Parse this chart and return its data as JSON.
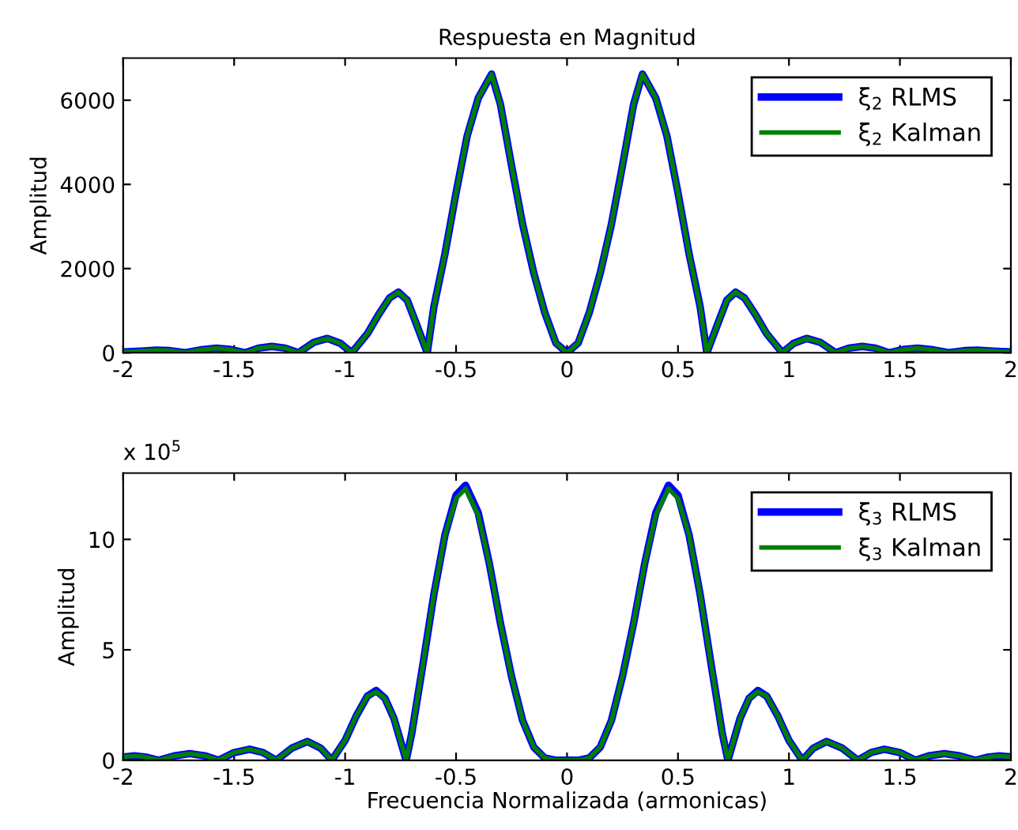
{
  "chart_data": [
    {
      "type": "line",
      "title": "Respuesta en Magnitud",
      "ylabel": "Amplitud",
      "xlim": [
        -2,
        2
      ],
      "xticks": [
        -2,
        -1.5,
        -1,
        -0.5,
        0,
        0.5,
        1,
        1.5,
        2
      ],
      "ylim": [
        0,
        7000
      ],
      "yticks": [
        0,
        2000,
        4000,
        6000
      ],
      "grid": false,
      "legend": "top right",
      "line_style": "solid",
      "x": [
        -2,
        -1.92,
        -1.85,
        -1.79,
        -1.72,
        -1.65,
        -1.58,
        -1.52,
        -1.45,
        -1.39,
        -1.33,
        -1.27,
        -1.21,
        -1.14,
        -1.08,
        -1.02,
        -0.97,
        -0.9,
        -0.85,
        -0.8,
        -0.76,
        -0.72,
        -0.68,
        -0.63,
        -0.6,
        -0.55,
        -0.5,
        -0.45,
        -0.4,
        -0.34,
        -0.3,
        -0.25,
        -0.2,
        -0.15,
        -0.1,
        -0.05,
        0,
        0.05,
        0.1,
        0.15,
        0.2,
        0.25,
        0.3,
        0.34,
        0.4,
        0.45,
        0.5,
        0.55,
        0.6,
        0.63,
        0.68,
        0.72,
        0.76,
        0.8,
        0.85,
        0.9,
        0.97,
        1.02,
        1.08,
        1.14,
        1.21,
        1.27,
        1.33,
        1.39,
        1.45,
        1.52,
        1.58,
        1.65,
        1.72,
        1.79,
        1.85,
        1.92,
        2
      ],
      "series": [
        {
          "name": "ξ$_{2}$ RLMS",
          "color": "#0000ff",
          "values": [
            20,
            40,
            60,
            50,
            0,
            70,
            110,
            80,
            0,
            110,
            150,
            110,
            0,
            250,
            340,
            220,
            0,
            450,
            900,
            1300,
            1440,
            1250,
            700,
            0,
            1090,
            2350,
            3800,
            5150,
            6050,
            6620,
            5900,
            4450,
            3050,
            1900,
            950,
            230,
            0,
            230,
            950,
            1900,
            3050,
            4450,
            5900,
            6620,
            6050,
            5150,
            3800,
            2350,
            1090,
            0,
            700,
            1250,
            1440,
            1300,
            900,
            450,
            0,
            220,
            340,
            250,
            0,
            110,
            150,
            110,
            0,
            80,
            110,
            70,
            0,
            50,
            60,
            40,
            20
          ]
        },
        {
          "name": "ξ$_{2}$ Kalman",
          "color": "#008000",
          "values": [
            20,
            40,
            60,
            50,
            0,
            70,
            110,
            80,
            0,
            110,
            150,
            110,
            0,
            250,
            340,
            220,
            0,
            450,
            900,
            1300,
            1440,
            1250,
            700,
            0,
            1090,
            2350,
            3800,
            5150,
            6050,
            6620,
            5900,
            4450,
            3050,
            1900,
            950,
            230,
            0,
            230,
            950,
            1900,
            3050,
            4450,
            5900,
            6620,
            6050,
            5150,
            3800,
            2350,
            1090,
            0,
            700,
            1250,
            1440,
            1300,
            900,
            450,
            0,
            220,
            340,
            250,
            0,
            110,
            150,
            110,
            0,
            80,
            110,
            70,
            0,
            50,
            60,
            40,
            20
          ]
        }
      ]
    },
    {
      "type": "line",
      "xlabel": "Frecuencia Normalizada (armonicas)",
      "ylabel": "Amplitud",
      "annotations": [
        "x 10$^{5}$"
      ],
      "xlim": [
        -2,
        2
      ],
      "xticks": [
        -2,
        -1.5,
        -1,
        -0.5,
        0,
        0.5,
        1,
        1.5,
        2
      ],
      "ylim": [
        0,
        13
      ],
      "yticks": [
        0,
        5,
        10
      ],
      "grid": false,
      "legend": "top right",
      "line_style": "solid",
      "x": [
        -2,
        -1.95,
        -1.9,
        -1.84,
        -1.77,
        -1.7,
        -1.63,
        -1.57,
        -1.5,
        -1.43,
        -1.37,
        -1.31,
        -1.24,
        -1.17,
        -1.11,
        -1.06,
        -1,
        -0.95,
        -0.9,
        -0.86,
        -0.82,
        -0.78,
        -0.725,
        -0.7,
        -0.65,
        -0.6,
        -0.55,
        -0.5,
        -0.457,
        -0.4,
        -0.35,
        -0.3,
        -0.25,
        -0.2,
        -0.15,
        -0.1,
        -0.05,
        0,
        0.05,
        0.1,
        0.15,
        0.2,
        0.25,
        0.3,
        0.35,
        0.4,
        0.457,
        0.5,
        0.55,
        0.6,
        0.65,
        0.7,
        0.725,
        0.78,
        0.82,
        0.86,
        0.9,
        0.95,
        1,
        1.06,
        1.11,
        1.17,
        1.24,
        1.31,
        1.37,
        1.43,
        1.5,
        1.57,
        1.63,
        1.7,
        1.77,
        1.84,
        1.9,
        1.95,
        2
      ],
      "series": [
        {
          "name": "ξ$_{3}$ RLMS",
          "color": "#0000ff",
          "values": [
            0.15,
            0.2,
            0.15,
            0,
            0.2,
            0.3,
            0.2,
            0,
            0.35,
            0.5,
            0.35,
            0,
            0.55,
            0.85,
            0.55,
            0,
            0.9,
            2.0,
            2.9,
            3.16,
            2.8,
            1.9,
            0,
            1.2,
            4.3,
            7.5,
            10.2,
            12.0,
            12.45,
            11.2,
            8.9,
            6.2,
            3.8,
            1.8,
            0.6,
            0.1,
            0,
            0,
            0,
            0.1,
            0.6,
            1.8,
            3.8,
            6.2,
            8.9,
            11.2,
            12.45,
            12.0,
            10.2,
            7.5,
            4.3,
            1.2,
            0,
            1.9,
            2.8,
            3.16,
            2.9,
            2.0,
            0.9,
            0,
            0.55,
            0.85,
            0.55,
            0,
            0.35,
            0.5,
            0.35,
            0,
            0.2,
            0.3,
            0.2,
            0,
            0.15,
            0.2,
            0.15
          ]
        },
        {
          "name": "ξ$_{3}$ Kalman",
          "color": "#008000",
          "values": [
            0.15,
            0.2,
            0.15,
            0,
            0.2,
            0.3,
            0.2,
            0,
            0.35,
            0.5,
            0.35,
            0,
            0.55,
            0.85,
            0.55,
            0,
            0.9,
            2.0,
            2.9,
            3.1,
            2.8,
            1.9,
            0,
            1.2,
            4.3,
            7.5,
            10.2,
            11.85,
            12.3,
            11.1,
            8.9,
            6.2,
            3.8,
            1.8,
            0.6,
            0.1,
            0,
            0,
            0,
            0.1,
            0.6,
            1.8,
            3.8,
            6.2,
            8.9,
            11.1,
            12.3,
            11.85,
            10.2,
            7.5,
            4.3,
            1.2,
            0,
            1.9,
            2.8,
            3.1,
            2.9,
            2.0,
            0.9,
            0,
            0.55,
            0.85,
            0.55,
            0,
            0.35,
            0.5,
            0.35,
            0,
            0.2,
            0.3,
            0.2,
            0,
            0.15,
            0.2,
            0.15
          ]
        }
      ]
    }
  ]
}
